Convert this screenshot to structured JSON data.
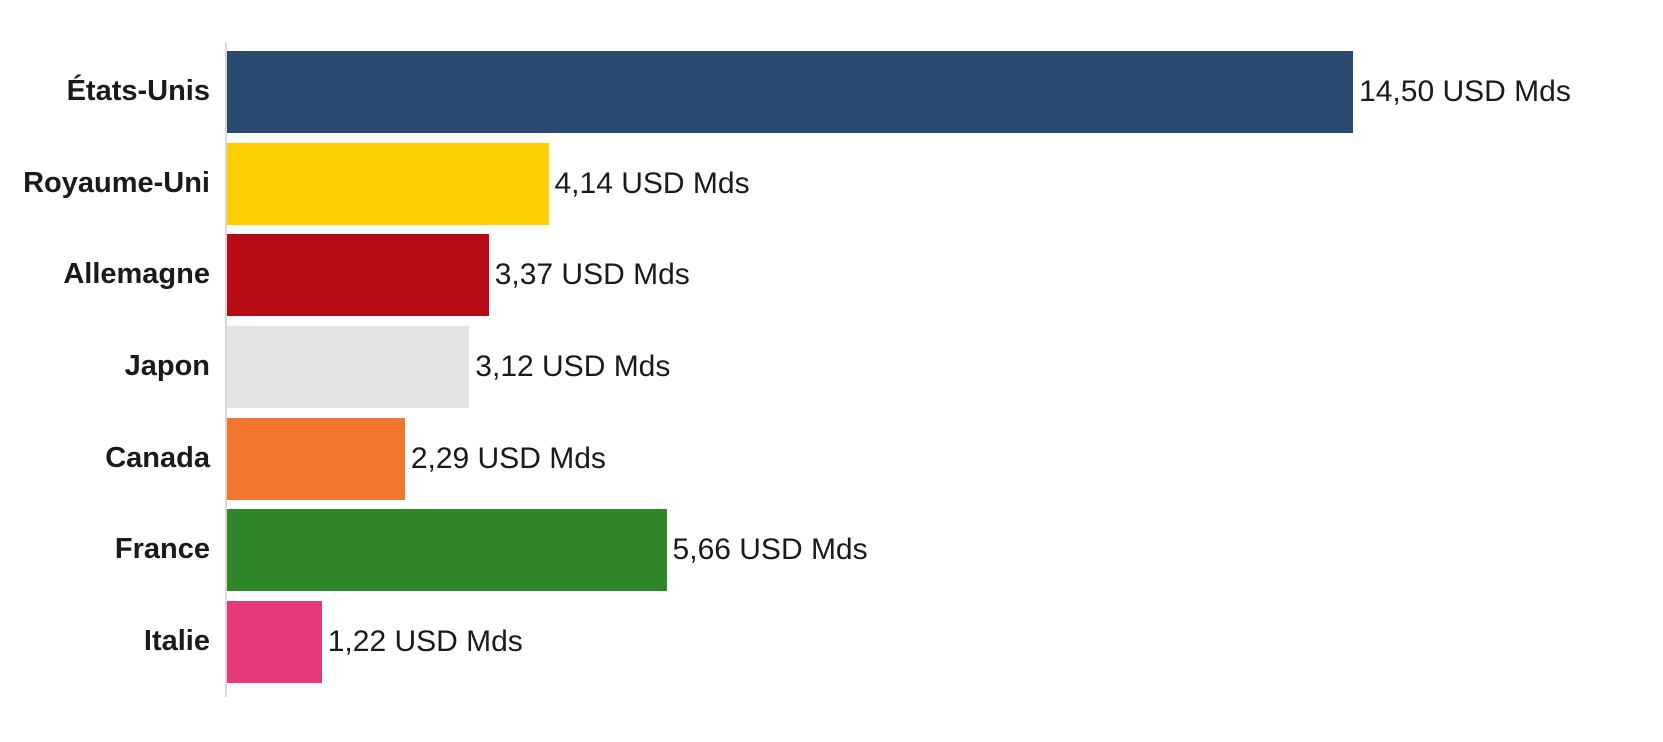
{
  "chart_data": {
    "type": "bar",
    "orientation": "horizontal",
    "title": "",
    "categories": [
      "États-Unis",
      "Royaume-Uni",
      "Allemagne",
      "Japon",
      "Canada",
      "France",
      "Italie"
    ],
    "values": [
      14.5,
      4.14,
      3.37,
      3.12,
      2.29,
      5.66,
      1.22
    ],
    "value_labels": [
      "14,50 USD Mds",
      "4,14 USD Mds",
      "3,37 USD Mds",
      "3,12 USD Mds",
      "2,29 USD Mds",
      "5,66 USD Mds",
      "1,22 USD Mds"
    ],
    "unit": "USD Mds",
    "bar_colors": [
      "#294a6e",
      "#ffce00",
      "#b60a14",
      "#e4e4e3",
      "#f0772d",
      "#2f8728",
      "#e63a7d"
    ],
    "xlim": [
      0,
      14.5
    ],
    "grid": false,
    "legend": false,
    "axis_line_color": "#d8d8d8",
    "category_label_color": "#1a1a1a",
    "value_label_color": "#1a1a1a",
    "background": "#ffffff"
  }
}
